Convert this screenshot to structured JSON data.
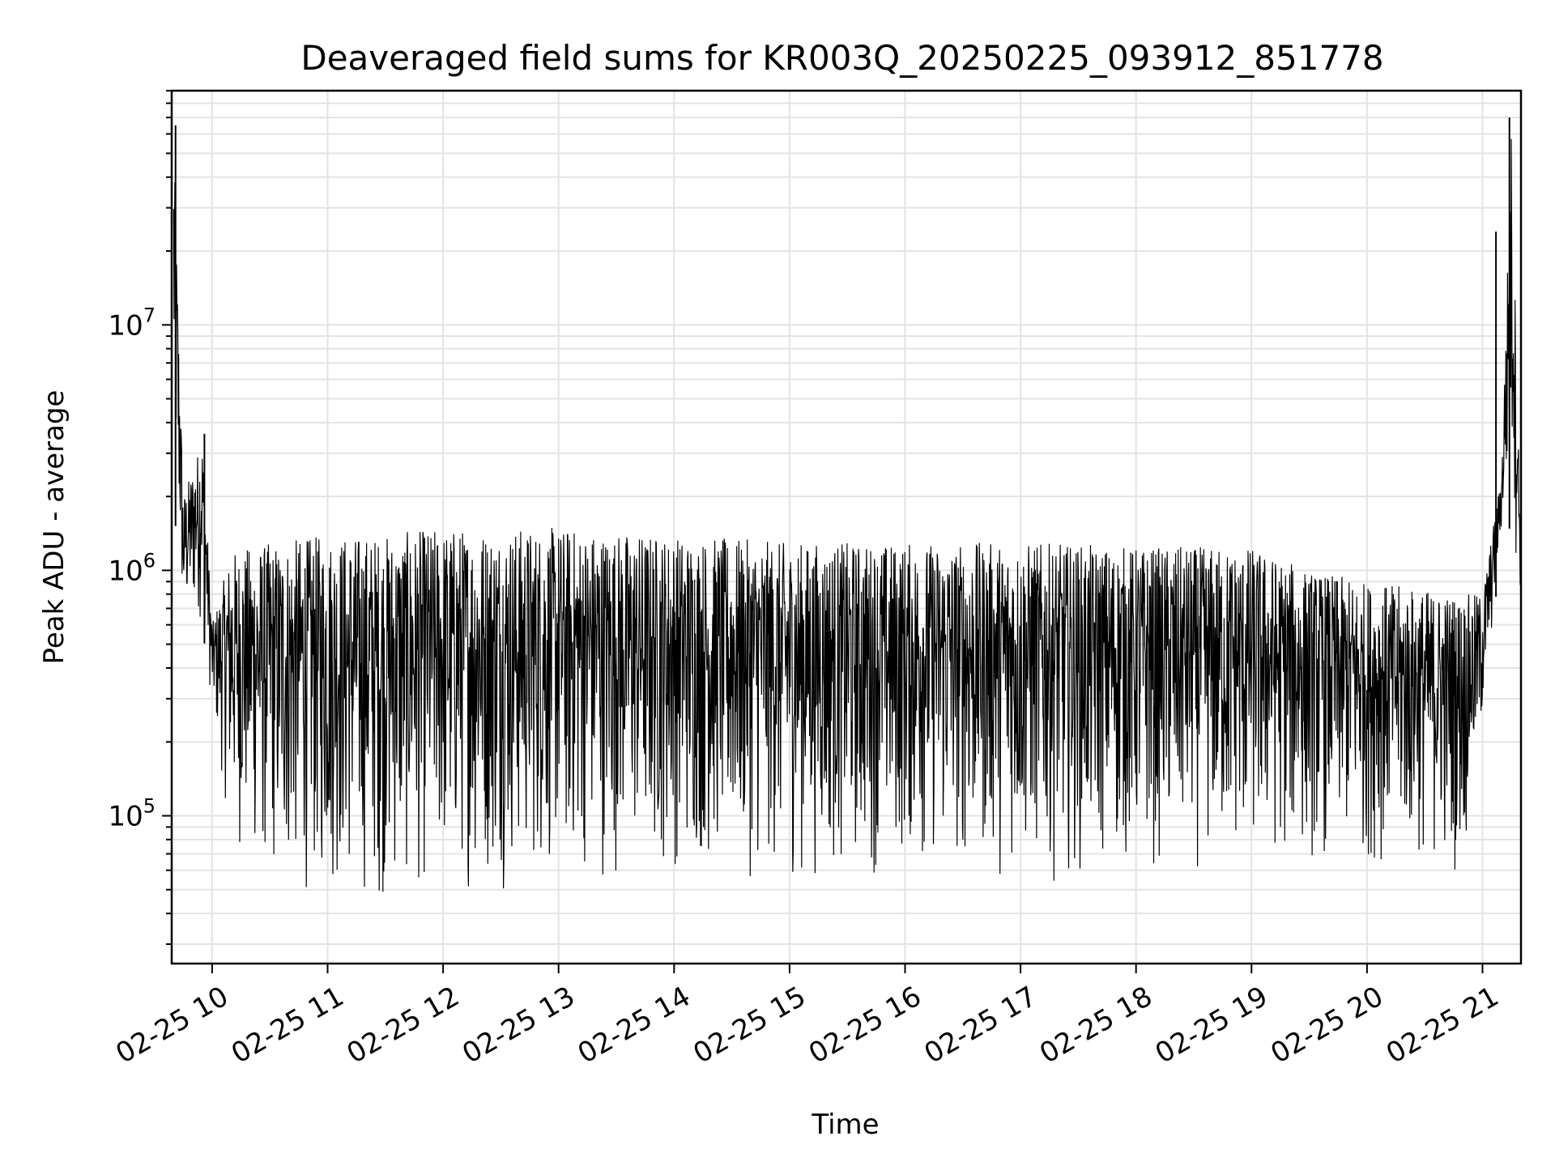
{
  "chart_data": {
    "type": "line",
    "title": "Deaveraged field sums for KR003Q_20250225_093912_851778",
    "xlabel": "Time",
    "ylabel": "Peak ADU - average",
    "yscale": "log",
    "grid": true,
    "ylim": [
      25000,
      90000000
    ],
    "xlim": [
      "2025-02-25 09:39",
      "2025-02-25 21:20"
    ],
    "x_ticks": [
      {
        "time": "2025-02-25 10:00",
        "label": "02-25 10"
      },
      {
        "time": "2025-02-25 11:00",
        "label": "02-25 11"
      },
      {
        "time": "2025-02-25 12:00",
        "label": "02-25 12"
      },
      {
        "time": "2025-02-25 13:00",
        "label": "02-25 13"
      },
      {
        "time": "2025-02-25 14:00",
        "label": "02-25 14"
      },
      {
        "time": "2025-02-25 15:00",
        "label": "02-25 15"
      },
      {
        "time": "2025-02-25 16:00",
        "label": "02-25 16"
      },
      {
        "time": "2025-02-25 17:00",
        "label": "02-25 17"
      },
      {
        "time": "2025-02-25 18:00",
        "label": "02-25 18"
      },
      {
        "time": "2025-02-25 19:00",
        "label": "02-25 19"
      },
      {
        "time": "2025-02-25 20:00",
        "label": "02-25 20"
      },
      {
        "time": "2025-02-25 21:00",
        "label": "02-25 21"
      }
    ],
    "y_ticks": [
      {
        "value": 100000,
        "base": "10",
        "exp": "5"
      },
      {
        "value": 1000000,
        "base": "10",
        "exp": "6"
      },
      {
        "value": 10000000,
        "base": "10",
        "exp": "7"
      }
    ],
    "series": [
      {
        "color": "#000000",
        "envelope": [
          {
            "x": "2025-02-25 09:40",
            "low": 2000000,
            "high": 60000000
          },
          {
            "x": "2025-02-25 09:45",
            "low": 500000,
            "high": 2000000
          },
          {
            "x": "2025-02-25 09:55",
            "low": 600000,
            "high": 3500000
          },
          {
            "x": "2025-02-25 10:00",
            "low": 250000,
            "high": 600000
          },
          {
            "x": "2025-02-25 10:10",
            "low": 70000,
            "high": 1200000
          },
          {
            "x": "2025-02-25 10:30",
            "low": 45000,
            "high": 1300000
          },
          {
            "x": "2025-02-25 11:00",
            "low": 42000,
            "high": 1400000
          },
          {
            "x": "2025-02-25 11:30",
            "low": 40000,
            "high": 1400000
          },
          {
            "x": "2025-02-25 12:00",
            "low": 45000,
            "high": 1500000
          },
          {
            "x": "2025-02-25 13:00",
            "low": 50000,
            "high": 1500000
          },
          {
            "x": "2025-02-25 14:00",
            "low": 55000,
            "high": 1400000
          },
          {
            "x": "2025-02-25 15:00",
            "low": 50000,
            "high": 1300000
          },
          {
            "x": "2025-02-25 16:00",
            "low": 55000,
            "high": 1300000
          },
          {
            "x": "2025-02-25 17:00",
            "low": 52000,
            "high": 1300000
          },
          {
            "x": "2025-02-25 18:00",
            "low": 55000,
            "high": 1250000
          },
          {
            "x": "2025-02-25 19:00",
            "low": 55000,
            "high": 1250000
          },
          {
            "x": "2025-02-25 19:30",
            "low": 60000,
            "high": 1000000
          },
          {
            "x": "2025-02-25 20:00",
            "low": 60000,
            "high": 900000
          },
          {
            "x": "2025-02-25 20:50",
            "low": 55000,
            "high": 800000
          },
          {
            "x": "2025-02-25 21:00",
            "low": 200000,
            "high": 800000
          },
          {
            "x": "2025-02-25 21:10",
            "low": 1400000,
            "high": 2500000
          },
          {
            "x": "2025-02-25 21:15",
            "low": 1500000,
            "high": 65000000
          },
          {
            "x": "2025-02-25 21:20",
            "low": 700000,
            "high": 1200000
          }
        ],
        "spikes": [
          {
            "x": "2025-02-25 09:41",
            "value": 65000000
          },
          {
            "x": "2025-02-25 09:56",
            "value": 3600000
          },
          {
            "x": "2025-02-25 21:07",
            "value": 24000000
          },
          {
            "x": "2025-02-25 21:14",
            "value": 70000000
          }
        ]
      }
    ]
  }
}
